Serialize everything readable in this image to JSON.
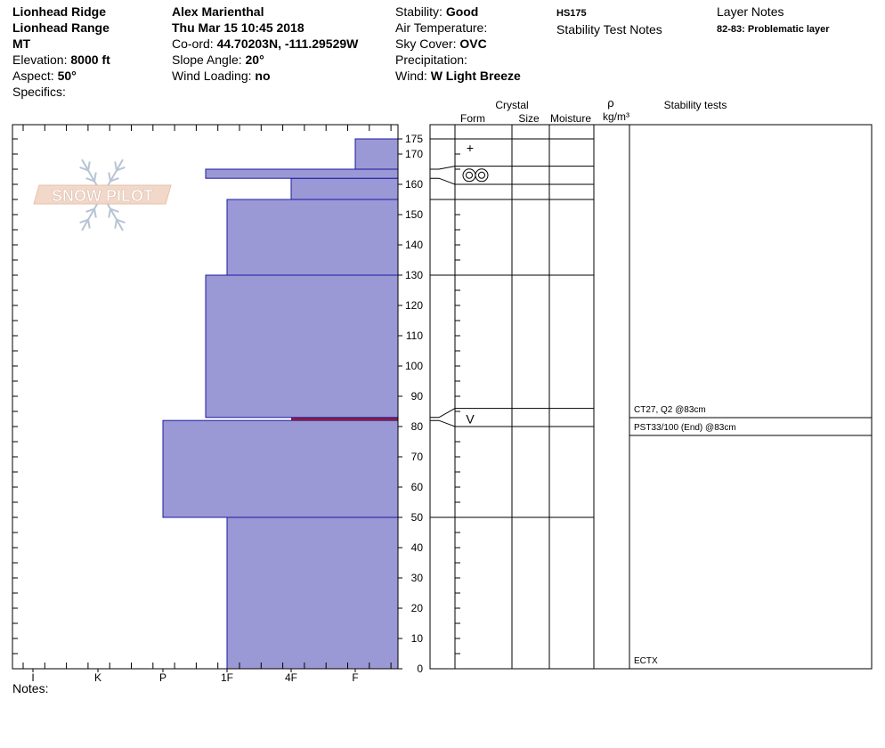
{
  "header": {
    "location": "Lionhead Ridge",
    "range": "Lionhead Range",
    "state": "MT",
    "elevation_label": "Elevation:",
    "elevation": "8000 ft",
    "aspect_label": "Aspect:",
    "aspect": "50°",
    "specifics_label": "Specifics:",
    "observer": "Alex Marienthal",
    "datetime": "Thu Mar 15 10:45 2018",
    "coord_label": "Co-ord:",
    "coord": "44.70203N, -111.29529W",
    "slope_label": "Slope Angle:",
    "slope": "20°",
    "wind_loading_label": "Wind Loading:",
    "wind_loading": "no",
    "stability_label": "Stability:",
    "stability": "Good",
    "air_temp_label": "Air Temperature:",
    "sky_label": "Sky Cover:",
    "sky": "OVC",
    "precip_label": "Precipitation:",
    "wind_label": "Wind:",
    "wind": "W Light Breeze",
    "hs": "HS175",
    "stability_notes_label": "Stability Test Notes",
    "layer_notes_label": "Layer Notes",
    "layer_note": "82-83: Problematic layer"
  },
  "logo": {
    "text": "SNOW PILOT"
  },
  "notes_label": "Notes:",
  "columns": {
    "crystal": "Crystal",
    "form": "Form",
    "size": "Size",
    "moisture": "Moisture",
    "rho": "ρ",
    "density_unit": "kg/m³",
    "stability_tests": "Stability tests"
  },
  "chart_data": {
    "type": "bar",
    "orientation": "horizontal",
    "description_axis": "height (cm)",
    "height_ticks": [
      0,
      10,
      20,
      30,
      40,
      50,
      60,
      70,
      80,
      90,
      100,
      110,
      120,
      130,
      140,
      150,
      160,
      170,
      175
    ],
    "ylim": [
      0,
      175
    ],
    "hardness_categories": [
      "I",
      "K",
      "P",
      "1F",
      "4F",
      "F"
    ],
    "layers": [
      {
        "bottom": 0,
        "top": 50,
        "hardness": "1F"
      },
      {
        "bottom": 50,
        "top": 82,
        "hardness": "P"
      },
      {
        "bottom": 82,
        "top": 83,
        "hardness": "4F",
        "problematic": true
      },
      {
        "bottom": 83,
        "top": 130,
        "hardness": "1F+"
      },
      {
        "bottom": 130,
        "top": 155,
        "hardness": "1F"
      },
      {
        "bottom": 155,
        "top": 162,
        "hardness": "4F"
      },
      {
        "bottom": 162,
        "top": 165,
        "hardness": "1F+"
      },
      {
        "bottom": 165,
        "top": 175,
        "hardness": "F"
      }
    ],
    "layer_boundaries": [
      50,
      80,
      86,
      130,
      155,
      160,
      166,
      175
    ],
    "grain_forms": [
      {
        "height": 172,
        "symbol": "+"
      },
      {
        "height": 163,
        "symbol": "◎◎"
      },
      {
        "height": 82.5,
        "symbol": "V"
      }
    ],
    "stability_tests": [
      {
        "text": "CT27, Q2 @83cm"
      },
      {
        "text": "PST33/100 (End) @83cm"
      },
      {
        "text": "ECTX"
      }
    ],
    "colors": {
      "layer_fill": "#9b98d6",
      "layer_edge": "#1a1aa0",
      "problem_layer": "#8b1a3a"
    }
  }
}
